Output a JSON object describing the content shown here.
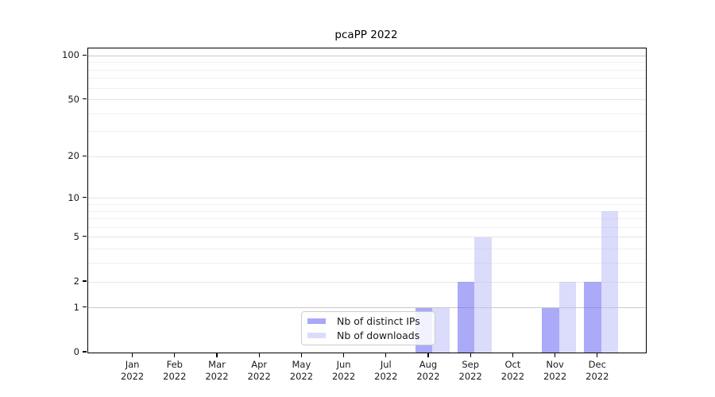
{
  "chart_data": {
    "type": "bar",
    "title": "pcaPP 2022",
    "categories": [
      "Jan 2022",
      "Feb 2022",
      "Mar 2022",
      "Apr 2022",
      "May 2022",
      "Jun 2022",
      "Jul 2022",
      "Aug 2022",
      "Sep 2022",
      "Oct 2022",
      "Nov 2022",
      "Dec 2022"
    ],
    "series": [
      {
        "name": "Nb of distinct IPs",
        "values": [
          0,
          0,
          0,
          0,
          0,
          0,
          0,
          1,
          2,
          0,
          1,
          2
        ]
      },
      {
        "name": "Nb of downloads",
        "values": [
          0,
          0,
          0,
          0,
          0,
          0,
          0,
          1,
          5,
          0,
          2,
          8
        ]
      }
    ],
    "colors": {
      "distinct_ips": "rgba(106,106,245,0.57)",
      "distinct_ips_solid": "#a8a8f8",
      "downloads": "rgba(186,186,247,0.52)",
      "downloads_solid": "#dcdcfa",
      "grid_major_emphasis": "#c9c9c9",
      "grid_major": "#e5e5e5",
      "grid_minor": "#f0f0f0"
    },
    "yscale": "log1p",
    "ylim": [
      0,
      113
    ],
    "ytick_values": [
      0,
      1,
      2,
      5,
      10,
      20,
      50,
      100
    ],
    "ytick_labels": [
      "0",
      "1",
      "2",
      "5",
      "10",
      "20",
      "50",
      "100"
    ],
    "grid_major_values": [
      2,
      5,
      10,
      20,
      50
    ],
    "grid_emphasis_values": [
      1,
      100
    ],
    "grid_minor_values": [
      3,
      4,
      6,
      7,
      8,
      9,
      30,
      40,
      60,
      70,
      80,
      90
    ],
    "grid": "horizontal",
    "legend_position": "lower center inside",
    "bar_group_width": 0.8
  }
}
